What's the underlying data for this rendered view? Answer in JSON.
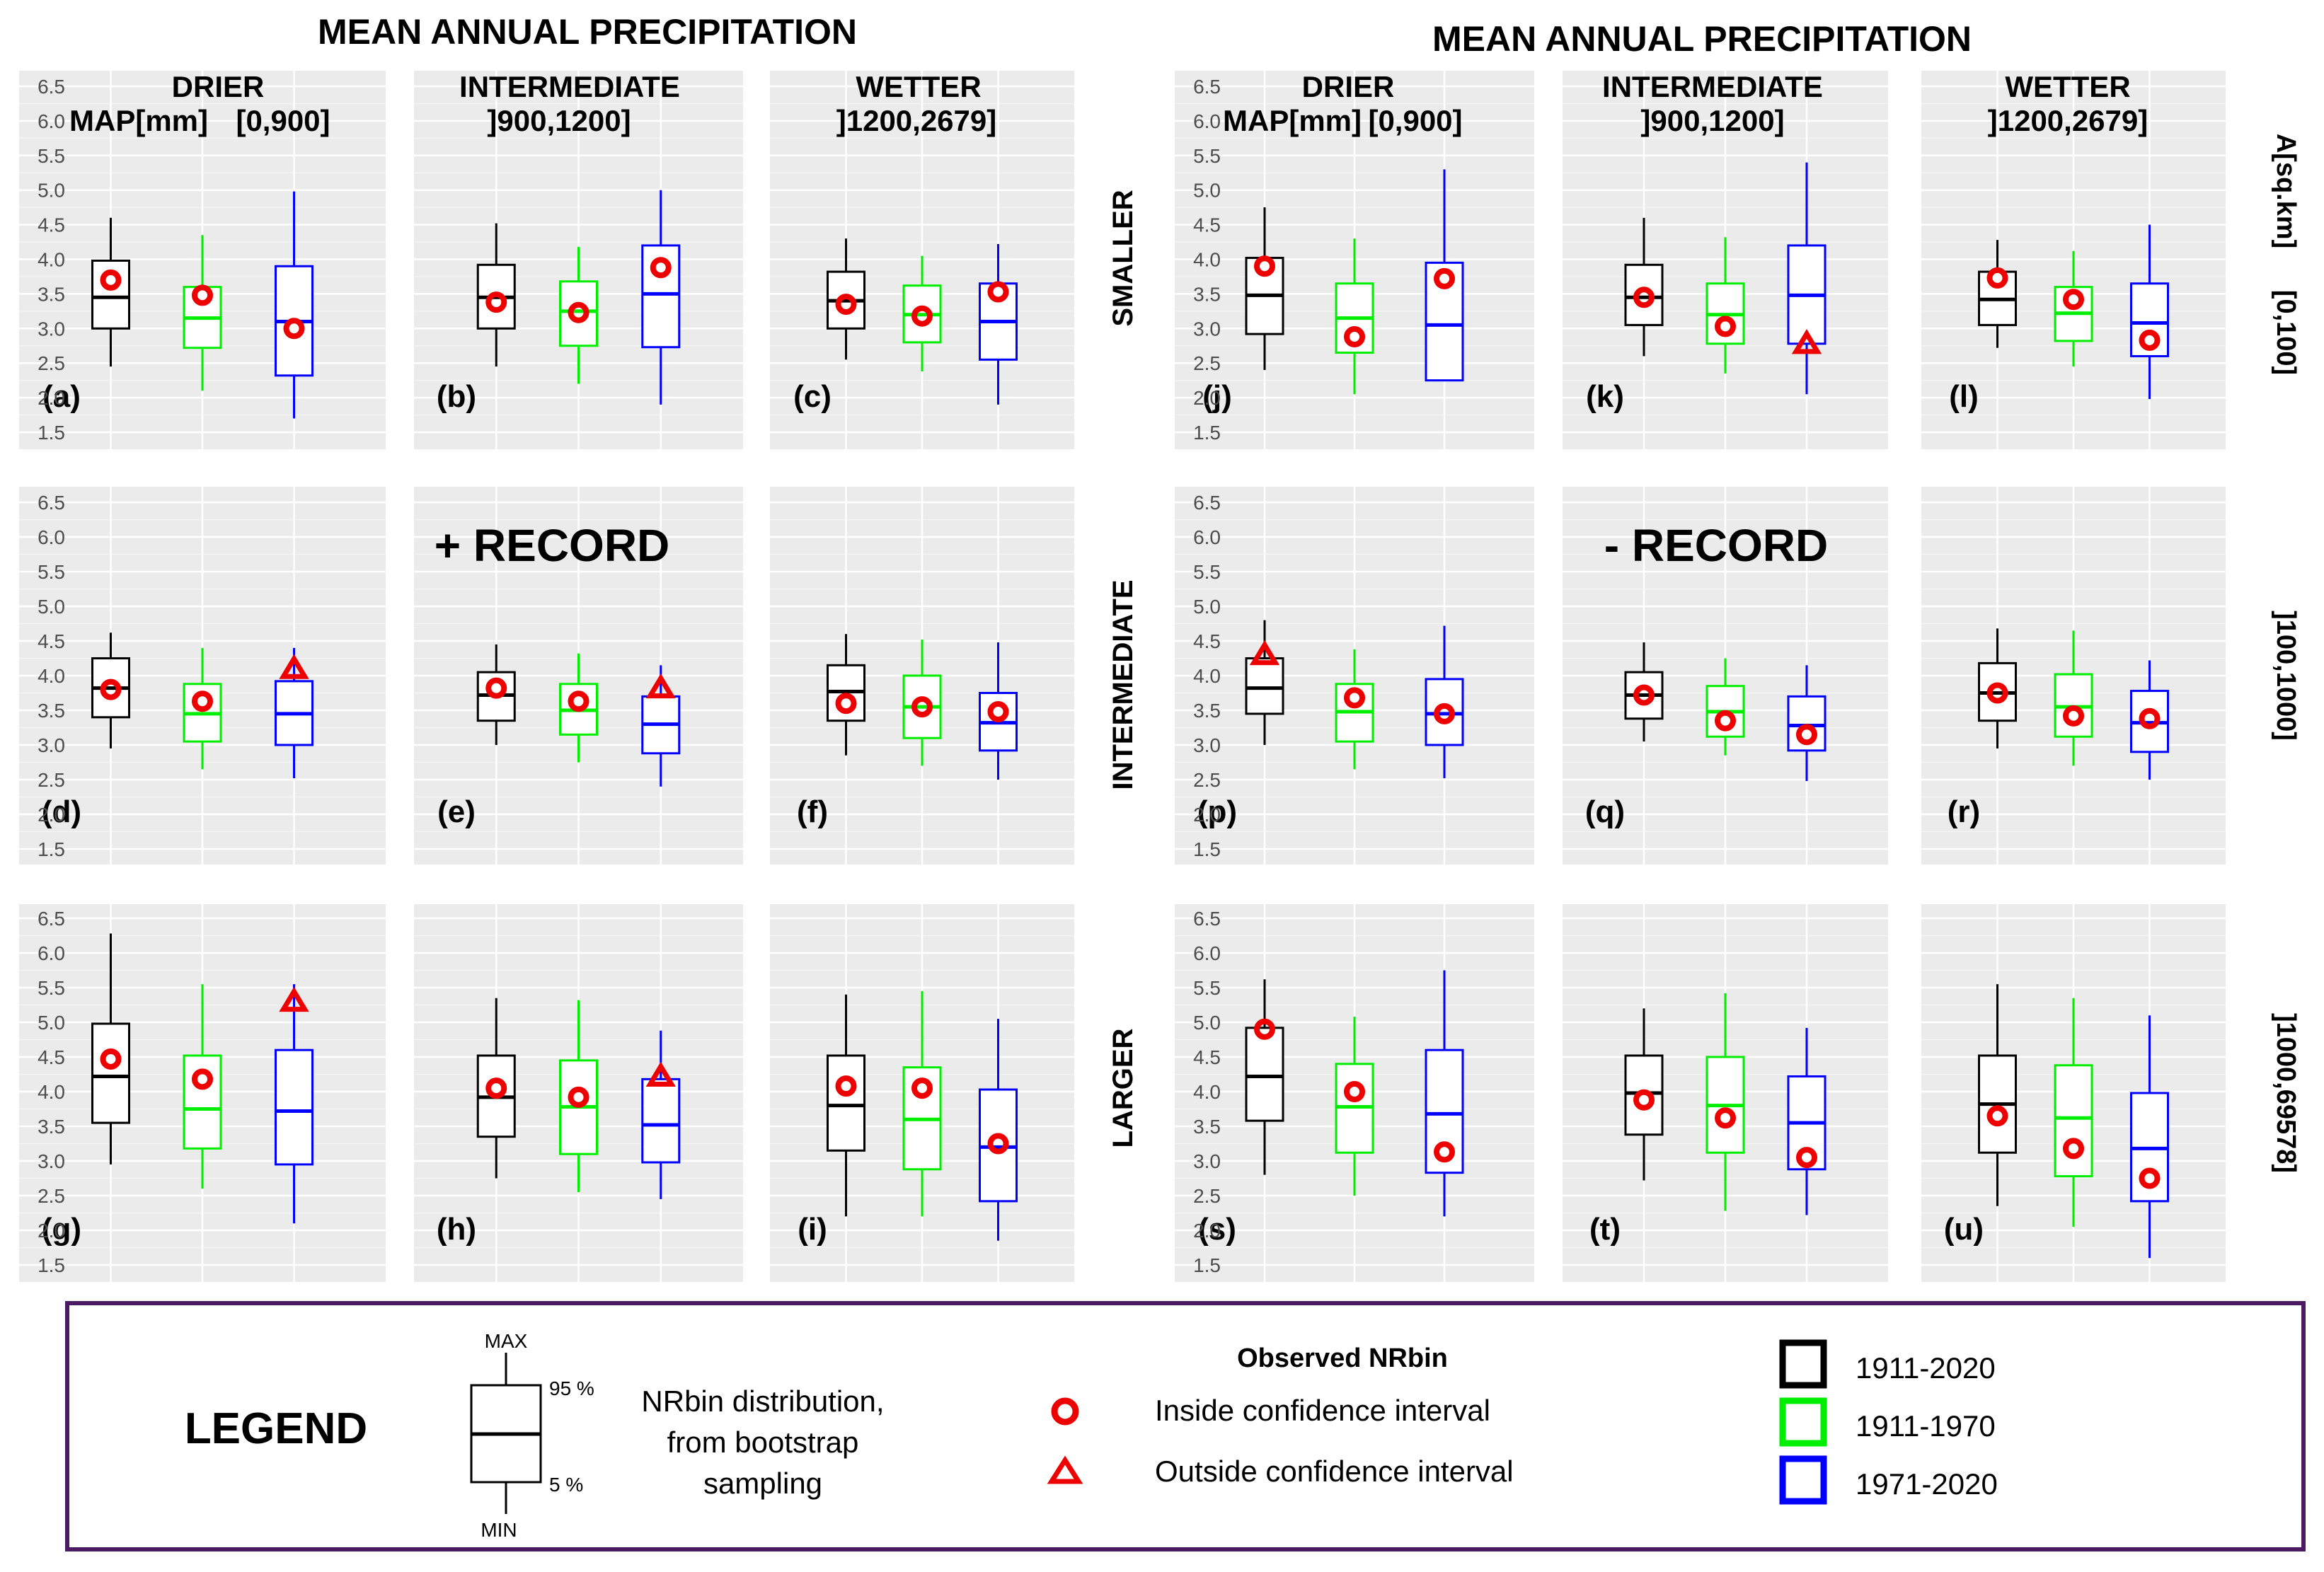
{
  "figure": {
    "title_left": "MEAN ANNUAL  PRECIPITATION",
    "title_right": "MEAN ANNUAL PRECIPITATION",
    "columns_left": [
      {
        "name": "DRIER",
        "map_label": "MAP[mm]",
        "range": "[0,900]"
      },
      {
        "name": "INTERMEDIATE",
        "range": "]900,1200]"
      },
      {
        "name": "WETTER",
        "range": "]1200,2679]"
      }
    ],
    "columns_right": [
      {
        "name": "DRIER",
        "map_label": "MAP[mm]",
        "range": "[0,900]"
      },
      {
        "name": "INTERMEDIATE",
        "range": "]900,1200]"
      },
      {
        "name": "WETTER",
        "range": "]1200,2679]"
      }
    ],
    "row_labels": [
      "SMALLER",
      "INTERMEDIATE",
      "LARGER"
    ],
    "area_label": "A[sq.km]",
    "area_ranges": [
      "[0,100]",
      "]100,1000]",
      "]1000,69578]"
    ],
    "record_left": "+ RECORD",
    "record_right": "- RECORD"
  },
  "legend": {
    "title": "LEGEND",
    "box_labels": {
      "max": "MAX",
      "p95": "95 %",
      "p5": "5 %",
      "min": "MIN"
    },
    "box_description": [
      "NRbin distribution,",
      "from bootstrap",
      "sampling"
    ],
    "observed_title": "Observed NRbin",
    "inside_label": "Inside confidence interval",
    "outside_label": "Outside confidence interval",
    "periods": [
      {
        "label": "1911-2020",
        "color": "#000000"
      },
      {
        "label": "1911-1970",
        "color": "#00ee00"
      },
      {
        "label": "1971-2020",
        "color": "#0000ff"
      }
    ],
    "frame_color": "#4b1a63",
    "marker_color": "#ee0000"
  },
  "chart_data": {
    "type": "boxplot",
    "y_ticks": [
      "1.5",
      "2.0",
      "2.5",
      "3.0",
      "3.5",
      "4.0",
      "4.5",
      "5.0",
      "5.5",
      "6.0",
      "6.5"
    ],
    "ylim": [
      1.35,
      6.75
    ],
    "series": [
      "1911-2020",
      "1911-1970",
      "1971-2020"
    ],
    "box_fields": [
      "whisker_low",
      "q_low",
      "median",
      "q_high",
      "whisker_high",
      "observed",
      "marker"
    ],
    "panels": [
      {
        "label": "(a)",
        "boxes": [
          [
            2.45,
            3.0,
            3.45,
            3.98,
            4.6,
            3.7,
            "circle"
          ],
          [
            2.1,
            2.72,
            3.15,
            3.6,
            4.35,
            3.48,
            "circle"
          ],
          [
            1.7,
            2.32,
            3.1,
            3.9,
            4.98,
            3.0,
            "circle"
          ]
        ]
      },
      {
        "label": "(b)",
        "boxes": [
          [
            2.45,
            3.0,
            3.45,
            3.92,
            4.52,
            3.38,
            "circle"
          ],
          [
            2.2,
            2.75,
            3.25,
            3.68,
            4.18,
            3.23,
            "circle"
          ],
          [
            1.9,
            2.73,
            3.5,
            4.2,
            5.0,
            3.88,
            "circle"
          ]
        ]
      },
      {
        "label": "(c)",
        "boxes": [
          [
            2.55,
            3.0,
            3.4,
            3.82,
            4.3,
            3.35,
            "circle"
          ],
          [
            2.38,
            2.8,
            3.2,
            3.62,
            4.05,
            3.18,
            "circle"
          ],
          [
            1.9,
            2.55,
            3.1,
            3.65,
            4.22,
            3.53,
            "circle"
          ]
        ]
      },
      {
        "label": "(d)",
        "boxes": [
          [
            2.95,
            3.4,
            3.82,
            4.25,
            4.62,
            3.8,
            "circle"
          ],
          [
            2.65,
            3.05,
            3.45,
            3.88,
            4.4,
            3.63,
            "circle"
          ],
          [
            2.52,
            3.0,
            3.45,
            3.92,
            4.4,
            4.1,
            "triangle"
          ]
        ]
      },
      {
        "label": "(e)",
        "boxes": [
          [
            3.0,
            3.35,
            3.72,
            4.05,
            4.45,
            3.82,
            "circle"
          ],
          [
            2.75,
            3.15,
            3.5,
            3.88,
            4.32,
            3.63,
            "circle"
          ],
          [
            2.4,
            2.88,
            3.3,
            3.7,
            4.15,
            3.82,
            "triangle"
          ]
        ]
      },
      {
        "label": "(f)",
        "boxes": [
          [
            2.85,
            3.35,
            3.77,
            4.15,
            4.6,
            3.6,
            "circle"
          ],
          [
            2.7,
            3.1,
            3.55,
            4.0,
            4.52,
            3.55,
            "circle"
          ],
          [
            2.5,
            2.92,
            3.32,
            3.75,
            4.48,
            3.48,
            "circle"
          ]
        ]
      },
      {
        "label": "(g)",
        "boxes": [
          [
            2.95,
            3.55,
            4.22,
            4.98,
            6.28,
            4.47,
            "circle"
          ],
          [
            2.6,
            3.18,
            3.75,
            4.52,
            5.55,
            4.18,
            "circle"
          ],
          [
            2.1,
            2.95,
            3.72,
            4.6,
            5.55,
            5.3,
            "triangle"
          ]
        ]
      },
      {
        "label": "(h)",
        "boxes": [
          [
            2.75,
            3.35,
            3.92,
            4.52,
            5.35,
            4.05,
            "circle"
          ],
          [
            2.55,
            3.1,
            3.78,
            4.45,
            5.32,
            3.92,
            "circle"
          ],
          [
            2.45,
            2.98,
            3.52,
            4.18,
            4.88,
            4.22,
            "triangle"
          ]
        ]
      },
      {
        "label": "(i)",
        "boxes": [
          [
            2.2,
            3.15,
            3.8,
            4.52,
            5.4,
            4.08,
            "circle"
          ],
          [
            2.2,
            2.88,
            3.6,
            4.35,
            5.45,
            4.05,
            "circle"
          ],
          [
            1.85,
            2.42,
            3.2,
            4.03,
            5.05,
            3.25,
            "circle"
          ]
        ]
      },
      {
        "label": "(j)",
        "boxes": [
          [
            2.4,
            2.92,
            3.48,
            4.02,
            4.75,
            3.9,
            "circle"
          ],
          [
            2.05,
            2.65,
            3.15,
            3.65,
            4.3,
            2.88,
            "circle"
          ],
          [
            2.25,
            2.25,
            3.05,
            3.95,
            5.3,
            3.72,
            "circle"
          ]
        ]
      },
      {
        "label": "(k)",
        "boxes": [
          [
            2.6,
            3.05,
            3.45,
            3.92,
            4.6,
            3.45,
            "circle"
          ],
          [
            2.35,
            2.78,
            3.2,
            3.65,
            4.32,
            3.03,
            "circle"
          ],
          [
            2.05,
            2.78,
            3.48,
            4.2,
            5.4,
            2.78,
            "triangle"
          ]
        ]
      },
      {
        "label": "(l)",
        "boxes": [
          [
            2.72,
            3.05,
            3.42,
            3.82,
            4.28,
            3.73,
            "circle"
          ],
          [
            2.45,
            2.82,
            3.22,
            3.6,
            4.12,
            3.42,
            "circle"
          ],
          [
            1.98,
            2.6,
            3.08,
            3.65,
            4.5,
            2.83,
            "circle"
          ]
        ]
      },
      {
        "label": "(p)",
        "boxes": [
          [
            3.0,
            3.45,
            3.82,
            4.25,
            4.8,
            4.3,
            "triangle"
          ],
          [
            2.65,
            3.05,
            3.48,
            3.88,
            4.38,
            3.68,
            "circle"
          ],
          [
            2.52,
            3.0,
            3.45,
            3.95,
            4.72,
            3.45,
            "circle"
          ]
        ]
      },
      {
        "label": "(q)",
        "boxes": [
          [
            3.05,
            3.38,
            3.72,
            4.05,
            4.48,
            3.72,
            "circle"
          ],
          [
            2.85,
            3.12,
            3.48,
            3.85,
            4.25,
            3.35,
            "circle"
          ],
          [
            2.48,
            2.92,
            3.28,
            3.7,
            4.15,
            3.15,
            "circle"
          ]
        ]
      },
      {
        "label": "(r)",
        "boxes": [
          [
            2.95,
            3.35,
            3.75,
            4.18,
            4.68,
            3.75,
            "circle"
          ],
          [
            2.7,
            3.12,
            3.55,
            4.02,
            4.65,
            3.42,
            "circle"
          ],
          [
            2.5,
            2.9,
            3.32,
            3.78,
            4.22,
            3.38,
            "circle"
          ]
        ]
      },
      {
        "label": "(s)",
        "boxes": [
          [
            2.8,
            3.58,
            4.22,
            4.92,
            5.62,
            4.9,
            "circle"
          ],
          [
            2.5,
            3.12,
            3.78,
            4.4,
            5.08,
            4.0,
            "circle"
          ],
          [
            2.2,
            2.83,
            3.68,
            4.6,
            5.75,
            3.13,
            "circle"
          ]
        ]
      },
      {
        "label": "(t)",
        "boxes": [
          [
            2.72,
            3.38,
            3.98,
            4.52,
            5.2,
            3.88,
            "circle"
          ],
          [
            2.28,
            3.12,
            3.8,
            4.5,
            5.42,
            3.62,
            "circle"
          ],
          [
            2.22,
            2.88,
            3.55,
            4.22,
            4.92,
            3.05,
            "circle"
          ]
        ]
      },
      {
        "label": "(u)",
        "boxes": [
          [
            2.35,
            3.12,
            3.82,
            4.52,
            5.55,
            3.65,
            "circle"
          ],
          [
            2.05,
            2.78,
            3.62,
            4.38,
            5.35,
            3.18,
            "circle"
          ],
          [
            1.6,
            2.42,
            3.18,
            3.98,
            5.1,
            2.75,
            "circle"
          ]
        ]
      }
    ]
  }
}
